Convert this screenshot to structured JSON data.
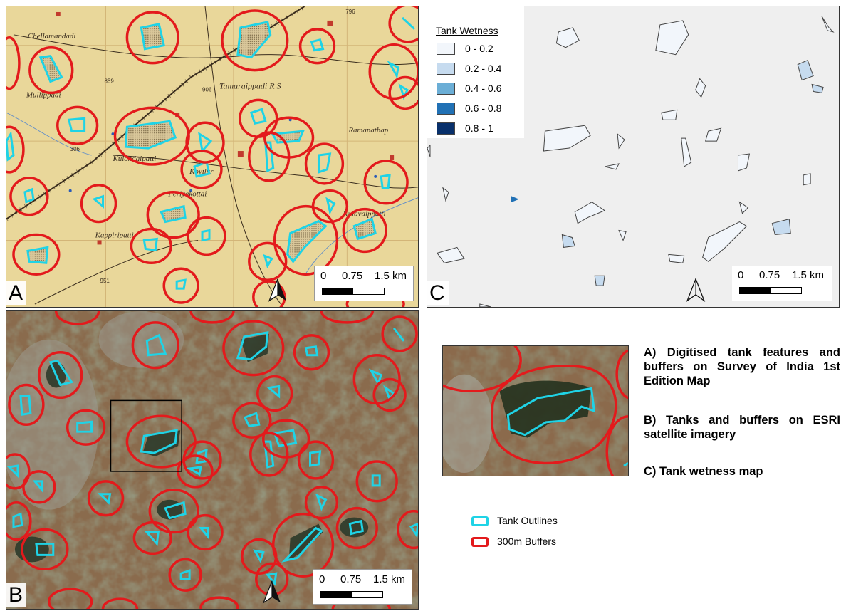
{
  "panels": {
    "a": {
      "letter": "A",
      "place_labels": [
        "Chellamandadi",
        "Mullippadi",
        "Tamaraippadi R S",
        "Kulandaipatti",
        "Kovilur",
        "Ramanathap",
        "Periyakottai",
        "Kappiripatti",
        "Kulavaippatti"
      ],
      "spot_heights": [
        "859",
        "906",
        "306",
        "951",
        "796"
      ],
      "scale_ticks": [
        "0",
        "0.75",
        "1.5 km"
      ]
    },
    "b": {
      "letter": "B",
      "scale_ticks": [
        "0",
        "0.75",
        "1.5 km"
      ]
    },
    "c": {
      "letter": "C",
      "legend_title": "Tank Wetness",
      "legend_items": [
        {
          "label": "0 - 0.2",
          "color": "#f2f6fb"
        },
        {
          "label": "0.2 - 0.4",
          "color": "#c6dbef"
        },
        {
          "label": "0.4 - 0.6",
          "color": "#6baed6"
        },
        {
          "label": "0.6 - 0.8",
          "color": "#2171b5"
        },
        {
          "label": "0.8 - 1",
          "color": "#08306b"
        }
      ],
      "scale_ticks": [
        "0",
        "0.75",
        "1.5 km"
      ]
    }
  },
  "captions": [
    "A) Digitised tank features and buffers on Survey of India 1st Edition Map",
    "B) Tanks and buffers on ESRI satellite imagery",
    "C) Tank wetness map"
  ],
  "legend": [
    {
      "label": "Tank Outlines",
      "color": "#1fd3e6"
    },
    {
      "label": "300m Buffers",
      "color": "#e31a1c"
    }
  ],
  "icons": [
    "north-arrow-icon"
  ],
  "colors": {
    "tank_outline": "#1fd3e6",
    "buffer": "#e31a1c",
    "toposheet": "#e9d79a",
    "wetness_bg": "#efefef"
  }
}
